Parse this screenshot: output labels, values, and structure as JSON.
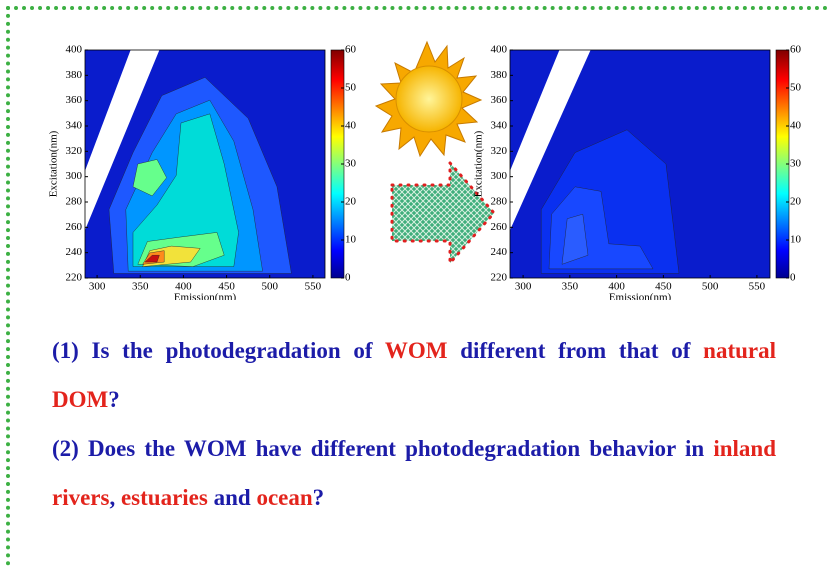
{
  "left_plot": {
    "xlabel": "Emission(nm)",
    "ylabel": "Excitation(nm)",
    "xlim": [
      286,
      564
    ],
    "xticks": [
      300,
      350,
      400,
      450,
      500,
      550
    ],
    "ylim": [
      220,
      400
    ],
    "yticks": [
      220,
      240,
      260,
      280,
      300,
      320,
      340,
      360,
      380,
      400
    ],
    "colorbar_lim": [
      0,
      60
    ],
    "colorbar_ticks": [
      0,
      10,
      20,
      30,
      40,
      50,
      60
    ]
  },
  "right_plot": {
    "xlabel": "Emission(nm)",
    "ylabel": "Excitation(nm)",
    "xlim": [
      286,
      564
    ],
    "xticks": [
      300,
      350,
      400,
      450,
      500,
      550
    ],
    "ylim": [
      220,
      400
    ],
    "yticks": [
      220,
      240,
      260,
      280,
      300,
      320,
      340,
      360,
      380,
      400
    ],
    "colorbar_lim": [
      0,
      60
    ],
    "colorbar_ticks": [
      0,
      10,
      20,
      30,
      40,
      50,
      60
    ]
  },
  "questions": [
    {
      "segments": [
        {
          "text": "(1) Is the photodegradation of ",
          "color": "#1c1ca8"
        },
        {
          "text": "WOM",
          "color": "#e3241c"
        },
        {
          "text": " different from that of ",
          "color": "#1c1ca8"
        },
        {
          "text": "natural DOM",
          "color": "#e3241c"
        },
        {
          "text": "?",
          "color": "#1c1ca8"
        }
      ]
    },
    {
      "segments": [
        {
          "text": "(2) Does the WOM have different photodegradation behavior in ",
          "color": "#1c1ca8"
        },
        {
          "text": "inland rivers",
          "color": "#e3241c"
        },
        {
          "text": ", ",
          "color": "#1c1ca8"
        },
        {
          "text": "estuaries",
          "color": "#e3241c"
        },
        {
          "text": " and ",
          "color": "#1c1ca8"
        },
        {
          "text": "ocean",
          "color": "#e3241c"
        },
        {
          "text": "?",
          "color": "#1c1ca8"
        }
      ]
    }
  ]
}
